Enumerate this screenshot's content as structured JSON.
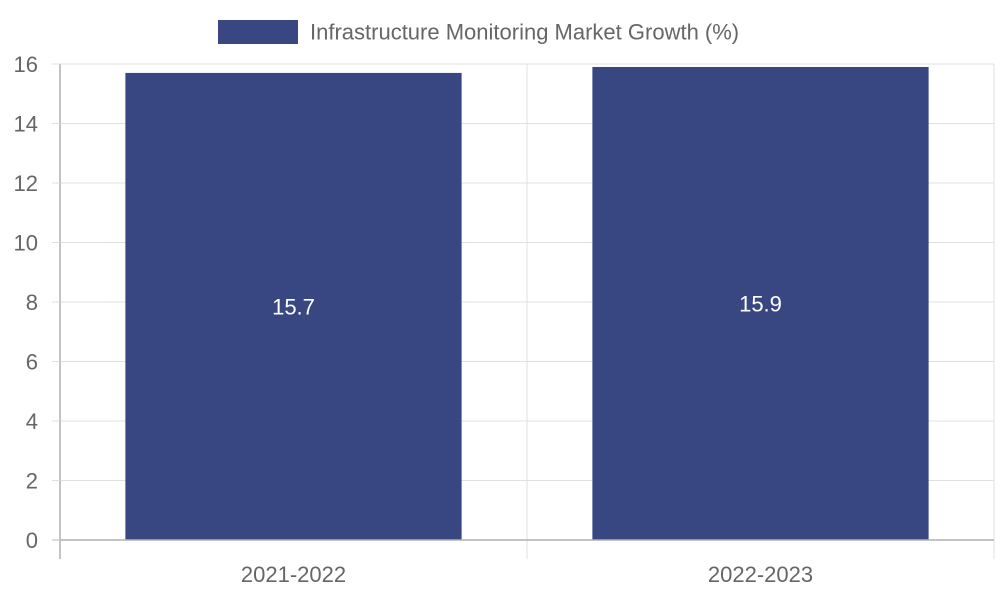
{
  "chart_data": {
    "type": "bar",
    "categories": [
      "2021-2022",
      "2022-2023"
    ],
    "series": [
      {
        "name": "Infrastructure Monitoring Market Growth (%)",
        "values": [
          15.7,
          15.9
        ],
        "color": "#384782"
      }
    ],
    "data_labels": [
      "15.7",
      "15.9"
    ],
    "ylim": [
      0,
      16
    ],
    "yticks": [
      0,
      2,
      4,
      6,
      8,
      10,
      12,
      14,
      16
    ],
    "grid": true,
    "legend": "top-center",
    "grid_color": "#e0e0e0",
    "axis_color": "#b0b0b0"
  }
}
